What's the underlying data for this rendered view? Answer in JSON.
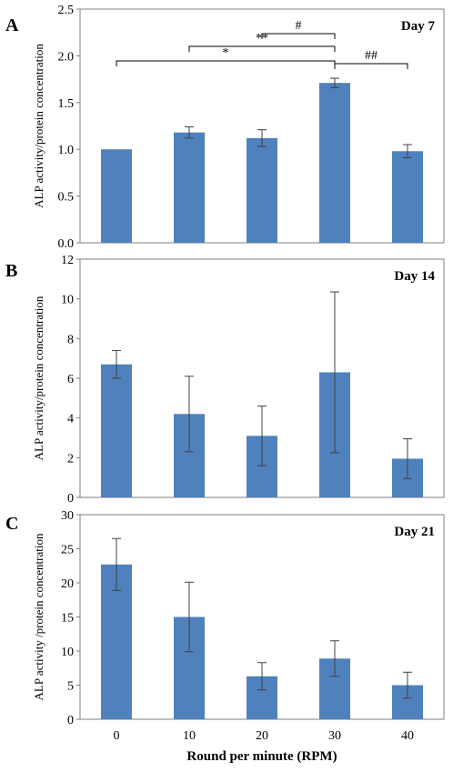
{
  "x_axis_label": "Round per minute (RPM)",
  "x_tick_labels": [
    "0",
    "10",
    "20",
    "30",
    "40"
  ],
  "bar_color": "#4f81bd",
  "chart_data": [
    {
      "type": "bar",
      "panel": "A",
      "label": "Day 7",
      "ylabel": "ALP activity/protein concentration",
      "ylim": [
        0,
        2.5
      ],
      "yticks": [
        "0.0",
        "0.5",
        "1.0",
        "1.5",
        "2.0",
        "2.5"
      ],
      "categories": [
        "0",
        "10",
        "20",
        "30",
        "40"
      ],
      "values": [
        1.0,
        1.18,
        1.12,
        1.71,
        0.98
      ],
      "errors": [
        0.0,
        0.06,
        0.09,
        0.05,
        0.07
      ],
      "significance": [
        {
          "from": 0,
          "to": 3,
          "label": "*"
        },
        {
          "from": 1,
          "to": 3,
          "label": "**"
        },
        {
          "from": 2,
          "to": 3,
          "label": "#"
        },
        {
          "from": 3,
          "to": 4,
          "label": "##"
        }
      ]
    },
    {
      "type": "bar",
      "panel": "B",
      "label": "Day 14",
      "ylabel": "ALP activity/protein concentration",
      "ylim": [
        0,
        12
      ],
      "yticks": [
        "0",
        "2",
        "4",
        "6",
        "8",
        "10",
        "12"
      ],
      "categories": [
        "0",
        "10",
        "20",
        "30",
        "40"
      ],
      "values": [
        6.7,
        4.2,
        3.1,
        6.3,
        1.95
      ],
      "errors": [
        0.7,
        1.9,
        1.5,
        4.05,
        1.0
      ]
    },
    {
      "type": "bar",
      "panel": "C",
      "label": "Day 21",
      "ylabel": "ALP activity /protein concentration",
      "ylim": [
        0,
        30
      ],
      "yticks": [
        "0",
        "5",
        "10",
        "15",
        "20",
        "25",
        "30"
      ],
      "categories": [
        "0",
        "10",
        "20",
        "30",
        "40"
      ],
      "values": [
        22.7,
        15.0,
        6.3,
        8.9,
        5.0
      ],
      "errors": [
        3.8,
        5.1,
        2.0,
        2.6,
        1.9
      ]
    }
  ]
}
